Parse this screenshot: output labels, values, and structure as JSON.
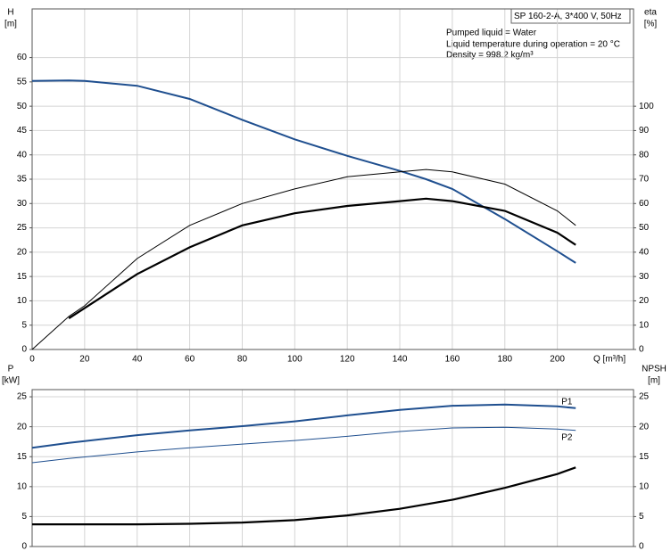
{
  "chart_data": [
    {
      "type": "line",
      "title": "SP 160-2-A, 3*400 V, 50Hz",
      "annotations": [
        "Pumped liquid = Water",
        "Liquid temperature during operation = 20 °C",
        "Density = 998.2 kg/m³"
      ],
      "y_label": "H",
      "y_unit": "[m]",
      "y2_label": "eta",
      "y2_unit": "[%]",
      "x_label": "Q [m³/h]",
      "x": [
        0,
        14,
        20,
        40,
        60,
        80,
        100,
        120,
        140,
        150,
        160,
        180,
        200,
        207
      ],
      "xlim": [
        0,
        229
      ],
      "xticks": [
        0,
        20,
        40,
        60,
        80,
        100,
        120,
        140,
        160,
        180,
        200
      ],
      "ylim": [
        0,
        70
      ],
      "yticks": [
        0,
        5,
        10,
        15,
        20,
        25,
        30,
        35,
        40,
        45,
        50,
        55,
        60
      ],
      "y2lim": [
        0,
        140
      ],
      "y2ticks": [
        0,
        10,
        20,
        30,
        40,
        50,
        60,
        70,
        80,
        90,
        100
      ],
      "grid": true,
      "series": [
        {
          "color": "#1f4f8f",
          "linewidth": 2,
          "values": [
            55.2,
            55.3,
            55.2,
            54.2,
            51.5,
            47.2,
            43.2,
            39.8,
            36.7,
            35,
            33,
            26.8,
            20.2,
            17.8
          ]
        },
        {
          "color": "#000000",
          "linewidth": 1,
          "axis": "y2",
          "values": [
            0,
            13.6,
            18,
            37.4,
            51,
            60,
            66,
            71,
            73,
            74,
            73,
            68,
            57,
            51
          ]
        },
        {
          "color": "#000000",
          "linewidth": 2.2,
          "axis": "y2",
          "values": [
            null,
            12.8,
            17,
            31,
            42,
            51,
            56,
            59,
            61,
            62,
            61,
            57,
            48,
            43
          ]
        }
      ]
    },
    {
      "type": "line",
      "y_label": "P",
      "y_unit": "[kW]",
      "y2_label": "NPSH",
      "y2_unit": "[m]",
      "x": [
        0,
        14,
        40,
        60,
        80,
        100,
        120,
        140,
        160,
        180,
        200,
        207
      ],
      "xlim": [
        0,
        229
      ],
      "ylim": [
        0,
        26.2
      ],
      "yticks": [
        0,
        5,
        10,
        15,
        20,
        25
      ],
      "y2lim": [
        0,
        26.2
      ],
      "y2ticks": [
        0,
        5,
        10,
        15,
        20,
        25
      ],
      "grid": true,
      "series": [
        {
          "name": "P1",
          "color": "#1f4f8f",
          "linewidth": 2,
          "values": [
            16.5,
            17.3,
            18.6,
            19.4,
            20.1,
            20.9,
            21.9,
            22.8,
            23.5,
            23.7,
            23.4,
            23.1
          ]
        },
        {
          "name": "P2",
          "color": "#1f4f8f",
          "linewidth": 1,
          "values": [
            14,
            14.7,
            15.8,
            16.5,
            17.1,
            17.7,
            18.4,
            19.2,
            19.8,
            19.9,
            19.6,
            19.4
          ]
        },
        {
          "color": "#000000",
          "linewidth": 2.2,
          "axis": "y2",
          "values": [
            3.7,
            3.7,
            3.7,
            3.8,
            4.0,
            4.4,
            5.2,
            6.3,
            7.8,
            9.8,
            12.1,
            13.2
          ]
        }
      ]
    }
  ]
}
